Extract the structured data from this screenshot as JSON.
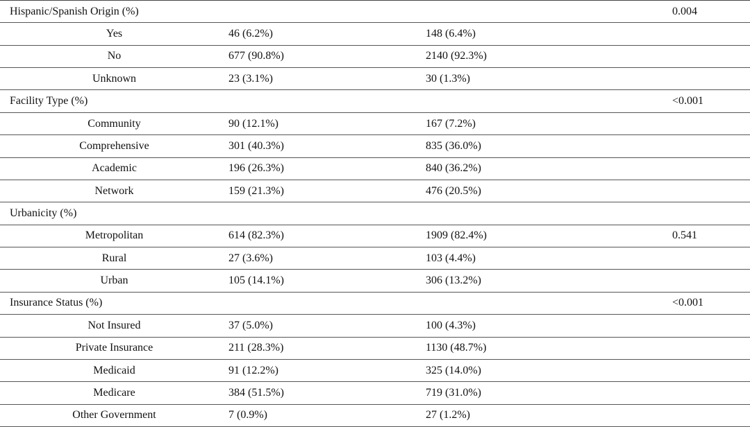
{
  "table": {
    "sections": [
      {
        "label": "Hispanic/Spanish Origin (%)",
        "p": "0.004",
        "rows": [
          [
            "Yes",
            "46 (6.2%)",
            "148 (6.4%)"
          ],
          [
            "No",
            "677 (90.8%)",
            "2140 (92.3%)"
          ],
          [
            "Unknown",
            "23 (3.1%)",
            "30 (1.3%)"
          ]
        ]
      },
      {
        "label": "Facility Type (%)",
        "p": "<0.001",
        "rows": [
          [
            "Community",
            "90 (12.1%)",
            "167 (7.2%)"
          ],
          [
            "Comprehensive",
            "301 (40.3%)",
            "835 (36.0%)"
          ],
          [
            "Academic",
            "196 (26.3%)",
            "840 (36.2%)"
          ],
          [
            "Network",
            "159 (21.3%)",
            "476 (20.5%)"
          ]
        ]
      },
      {
        "label": "Urbanicity (%)",
        "rows": [
          [
            "Metropolitan",
            "614 (82.3%)",
            "1909 (82.4%)",
            "0.541"
          ],
          [
            "Rural",
            "27 (3.6%)",
            "103 (4.4%)"
          ],
          [
            "Urban",
            "105 (14.1%)",
            "306 (13.2%)"
          ]
        ]
      },
      {
        "label": "Insurance Status (%)",
        "p": "<0.001",
        "rows": [
          [
            "Not Insured",
            "37 (5.0%)",
            "100 (4.3%)"
          ],
          [
            "Private Insurance",
            "211 (28.3%)",
            "1130 (48.7%)"
          ],
          [
            "Medicaid",
            "91 (12.2%)",
            "325 (14.0%)"
          ],
          [
            "Medicare",
            "384 (51.5%)",
            "719 (31.0%)"
          ],
          [
            "Other Government",
            "7 (0.9%)",
            "27 (1.2%)"
          ]
        ]
      }
    ]
  }
}
